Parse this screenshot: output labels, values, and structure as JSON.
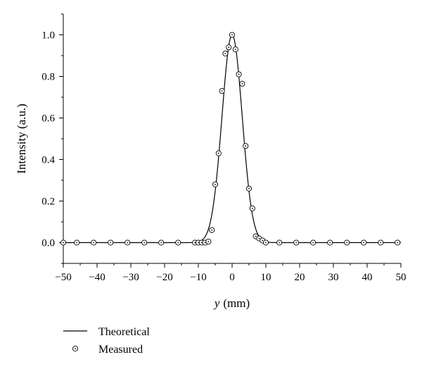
{
  "chart_data": {
    "type": "scatter",
    "xlabel_var": "y",
    "xlabel_unit": "(mm)",
    "ylabel": "Intensity (a.u.)",
    "xlim": [
      -50,
      50
    ],
    "ylim": [
      -0.1,
      1.1
    ],
    "xticks": [
      -50,
      -40,
      -30,
      -20,
      -10,
      0,
      10,
      20,
      30,
      40,
      50
    ],
    "xtick_labels": [
      "−50",
      "−40",
      "−30",
      "−20",
      "−10",
      "0",
      "10",
      "20",
      "30",
      "40",
      "50"
    ],
    "yticks": [
      0.0,
      0.2,
      0.4,
      0.6,
      0.8,
      1.0
    ],
    "ytick_labels": [
      "0.0",
      "0.2",
      "0.4",
      "0.6",
      "0.8",
      "1.0"
    ],
    "grid": false,
    "legend_position": "bottom-left",
    "series": [
      {
        "name": "Theoretical",
        "kind": "line",
        "model": "gaussian",
        "center": 0,
        "sigma": 3.0,
        "amplitude": 1.0
      },
      {
        "name": "Measured",
        "kind": "markers",
        "marker": "circle-dot",
        "points": [
          [
            -50,
            0.0
          ],
          [
            -46,
            0.0
          ],
          [
            -41,
            0.0
          ],
          [
            -36,
            0.0
          ],
          [
            -31,
            0.0
          ],
          [
            -26,
            0.0
          ],
          [
            -21,
            0.0
          ],
          [
            -16,
            0.0
          ],
          [
            -11,
            0.0
          ],
          [
            -10,
            0.0
          ],
          [
            -9,
            0.0
          ],
          [
            -8,
            0.0
          ],
          [
            -7,
            0.005
          ],
          [
            -6,
            0.06
          ],
          [
            -5,
            0.28
          ],
          [
            -4,
            0.43
          ],
          [
            -3,
            0.73
          ],
          [
            -2,
            0.91
          ],
          [
            -1,
            0.94
          ],
          [
            0,
            1.0
          ],
          [
            1,
            0.93
          ],
          [
            2,
            0.81
          ],
          [
            3,
            0.765
          ],
          [
            4,
            0.465
          ],
          [
            5,
            0.26
          ],
          [
            6,
            0.165
          ],
          [
            7,
            0.03
          ],
          [
            8,
            0.02
          ],
          [
            9,
            0.01
          ],
          [
            10,
            0.0
          ],
          [
            14,
            0.0
          ],
          [
            19,
            0.0
          ],
          [
            24,
            0.0
          ],
          [
            29,
            0.0
          ],
          [
            34,
            0.0
          ],
          [
            39,
            0.0
          ],
          [
            44,
            0.0
          ],
          [
            49,
            0.0
          ]
        ]
      }
    ]
  }
}
